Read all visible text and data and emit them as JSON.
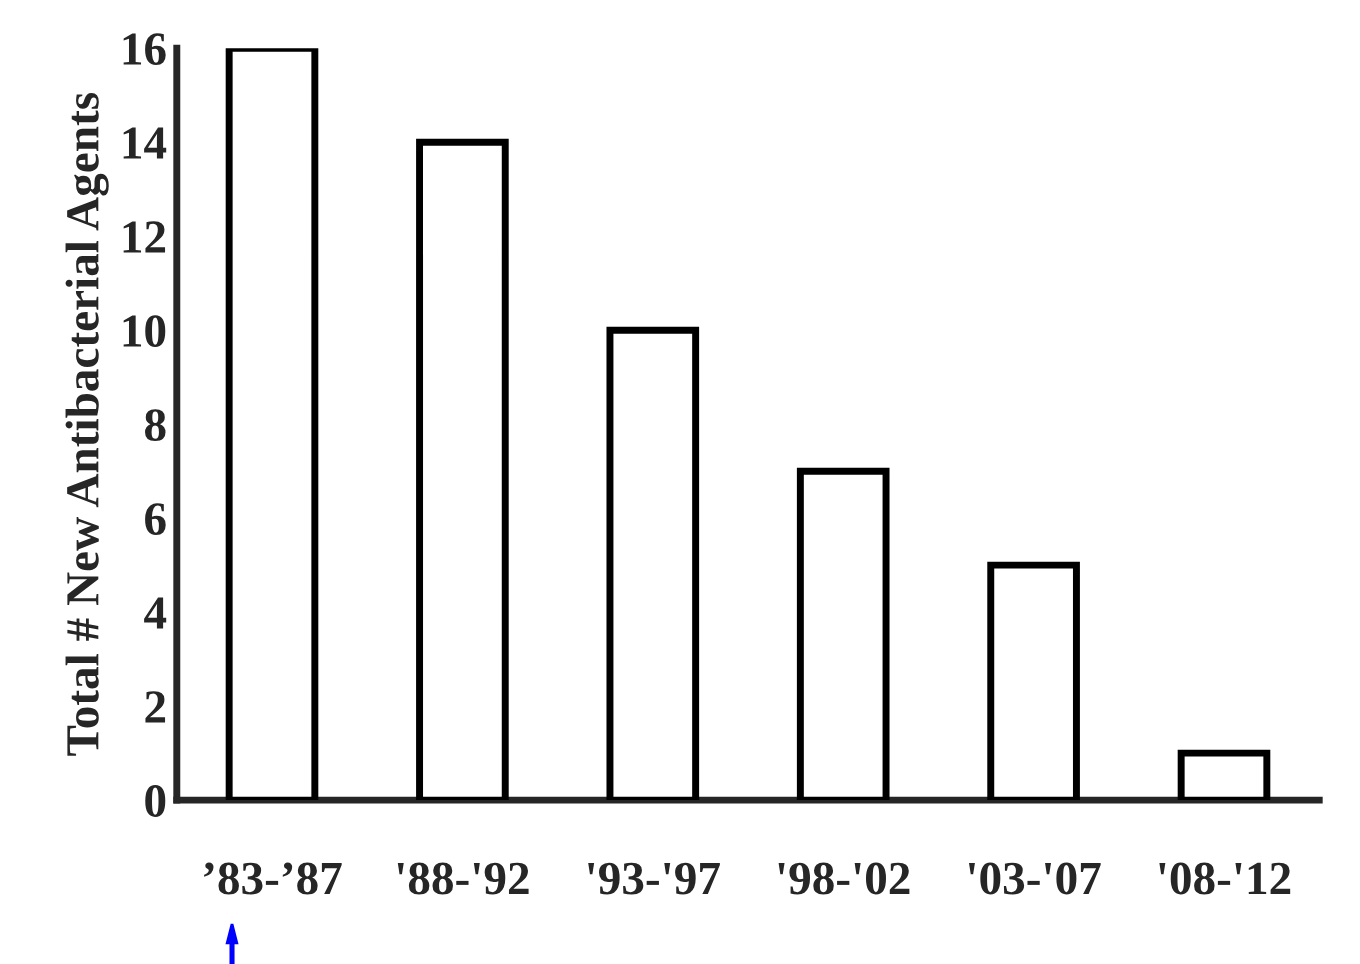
{
  "chart_data": {
    "type": "bar",
    "ylabel": "Total # New Antibacterial Agents",
    "categories": [
      "’83-’87",
      "'88-'92",
      "'93-'97",
      "'98-'02",
      "'03-'07",
      "'08-'12"
    ],
    "values": [
      16,
      14,
      10,
      7,
      5,
      1
    ],
    "color": "#ffffff",
    "ylim": [
      0,
      16
    ],
    "yticks": [
      0,
      2,
      4,
      6,
      8,
      10,
      12,
      14,
      16
    ],
    "grid": false
  }
}
